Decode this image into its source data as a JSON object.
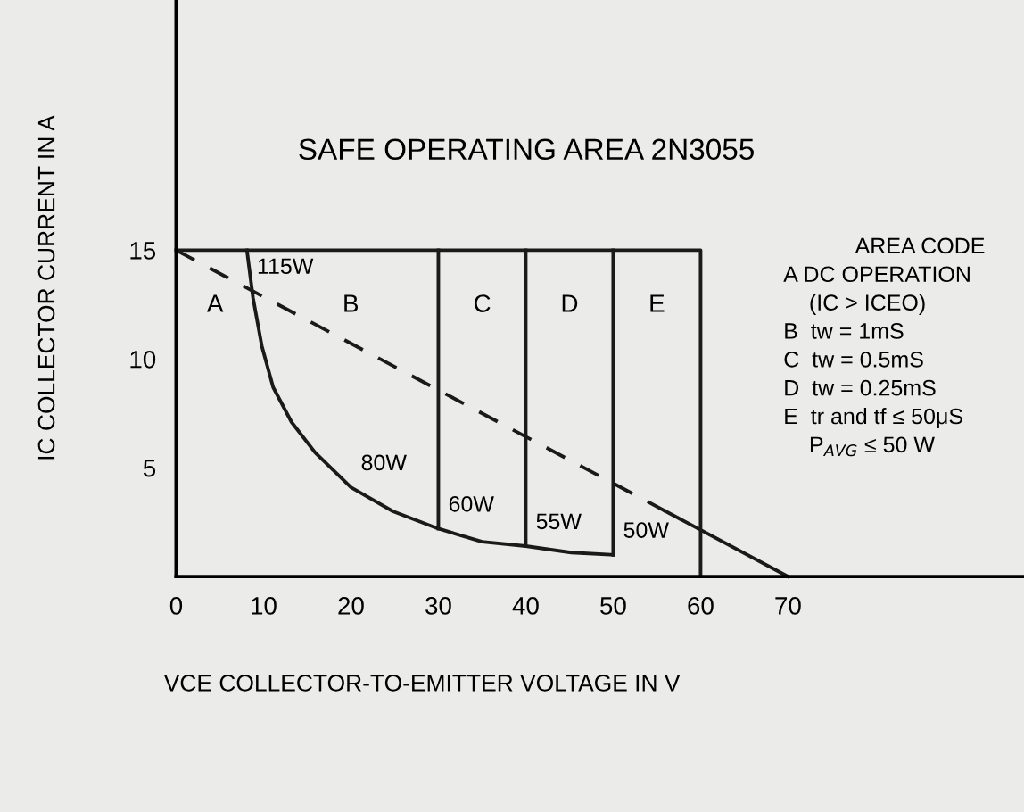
{
  "chart_data": {
    "type": "line",
    "title": "SAFE OPERATING AREA 2N3055",
    "xlabel": "VCE COLLECTOR-TO-EMITTER VOLTAGE IN V",
    "ylabel": "IC COLLECTOR CURRENT IN A",
    "xlim": [
      0,
      97
    ],
    "ylim": [
      0,
      26.5
    ],
    "xticks": [
      0,
      10,
      20,
      30,
      40,
      50,
      60,
      70
    ],
    "yticks": [
      5,
      10,
      15
    ],
    "grid": false,
    "marker": "none",
    "series": [
      {
        "color": "#1a1a1a",
        "line_style": "solid",
        "x": [
          8.1,
          8.8,
          9.8,
          11.1,
          13.2,
          15.9,
          20,
          24.8,
          30,
          35,
          40,
          45.2,
          50
        ],
        "values": [
          15,
          12.8,
          10.6,
          8.7,
          7.1,
          5.7,
          4.1,
          3.0,
          2.2,
          1.6,
          1.4,
          1.1,
          1.0
        ]
      },
      {
        "color": "#1a1a1a",
        "line_style": "dashed",
        "x": [
          0,
          56
        ],
        "values": [
          15,
          3
        ]
      },
      {
        "color": "#1a1a1a",
        "line_style": "solid",
        "x": [
          56,
          70
        ],
        "values": [
          3,
          0
        ]
      },
      {
        "color": "#1a1a1a",
        "line_style": "solid",
        "x": [
          0,
          60,
          60
        ],
        "values": [
          15,
          15,
          0
        ]
      },
      {
        "color": "#1a1a1a",
        "line_style": "solid",
        "x": [
          30,
          30
        ],
        "values": [
          2.2,
          15
        ]
      },
      {
        "color": "#1a1a1a",
        "line_style": "solid",
        "x": [
          40,
          40
        ],
        "values": [
          1.4,
          15
        ]
      },
      {
        "color": "#1a1a1a",
        "line_style": "solid",
        "x": [
          50,
          50
        ],
        "values": [
          1.0,
          15
        ]
      }
    ],
    "annotations": [
      "A",
      "B",
      "C",
      "D",
      "E",
      {
        "text": "115W",
        "x": 8.1,
        "y": 15
      },
      {
        "text": "80W",
        "x": 20,
        "y": 4.1
      },
      {
        "text": "60W",
        "x": 30,
        "y": 2.2
      },
      {
        "text": "55W",
        "x": 40,
        "y": 1.4
      },
      {
        "text": "50W",
        "x": 50,
        "y": 1.0
      },
      "AREA CODE",
      "A DC OPERATION",
      "(IC > ICEO)",
      "B  tw = 1mS",
      "C  tw = 0.5mS",
      "D  tw = 0.25mS",
      "E  tr and tf ≤ 50μS",
      "P$_{AVG}$ ≤ 50 W"
    ]
  }
}
